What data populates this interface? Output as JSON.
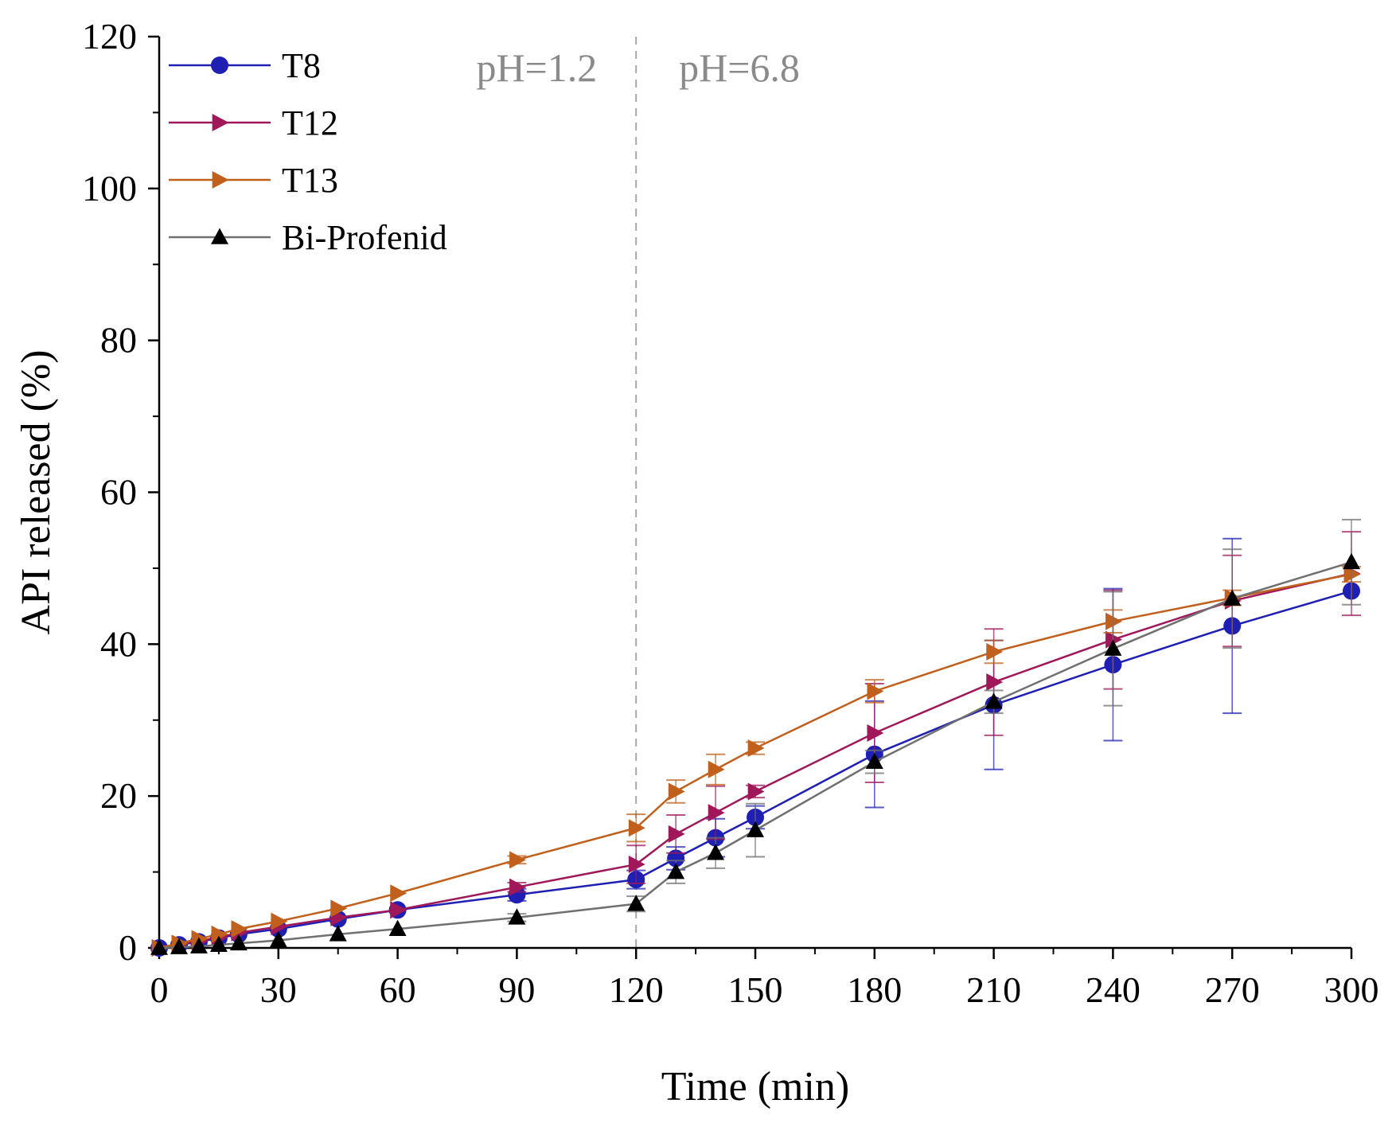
{
  "chart_data": {
    "type": "line",
    "xlabel": "Time (min)",
    "ylabel": "API released (%)",
    "xlim": [
      0,
      300
    ],
    "ylim": [
      0,
      120
    ],
    "xticks": [
      "0",
      "30",
      "60",
      "90",
      "120",
      "150",
      "180",
      "210",
      "240",
      "270",
      "300"
    ],
    "yticks": [
      "0",
      "20",
      "40",
      "60",
      "80",
      "100",
      "120"
    ],
    "grid": false,
    "legend_position": "top-left",
    "annotations": [
      {
        "text": "pH=1.2",
        "x": 95
      },
      {
        "text": "pH=6.8",
        "x": 146
      }
    ],
    "divider_x": 120,
    "series": [
      {
        "name": "T8",
        "color": "#1f1fb4",
        "marker": "circle",
        "x": [
          0,
          5,
          10,
          15,
          20,
          30,
          45,
          60,
          90,
          120,
          130,
          140,
          150,
          180,
          210,
          240,
          270,
          300
        ],
        "y": [
          0,
          0.4,
          0.8,
          1.3,
          1.8,
          2.5,
          3.8,
          5.0,
          7.0,
          9.0,
          11.8,
          14.5,
          17.2,
          25.5,
          32.0,
          37.3,
          42.4,
          47.0
        ],
        "err": [
          0,
          0,
          0,
          0,
          0,
          0,
          0,
          0,
          0.8,
          1.2,
          1.5,
          2.5,
          1.5,
          7.0,
          8.5,
          10.0,
          11.5,
          0
        ]
      },
      {
        "name": "T12",
        "color": "#a0185a",
        "marker": "triangle-right",
        "x": [
          0,
          5,
          10,
          15,
          20,
          30,
          45,
          60,
          90,
          120,
          130,
          140,
          150,
          180,
          210,
          240,
          270,
          300
        ],
        "y": [
          0,
          0.5,
          0.9,
          1.4,
          2.0,
          2.8,
          4.0,
          5.0,
          8.0,
          11.0,
          15.0,
          17.8,
          20.6,
          28.3,
          35.0,
          40.6,
          45.7,
          49.3
        ],
        "err": [
          0,
          0,
          0,
          0,
          0,
          0,
          0,
          0,
          0.6,
          2.5,
          2.5,
          3.5,
          0.8,
          6.5,
          7.0,
          6.5,
          6.0,
          5.5
        ]
      },
      {
        "name": "T13",
        "color": "#c0601c",
        "marker": "triangle-right",
        "x": [
          0,
          5,
          10,
          15,
          20,
          30,
          45,
          60,
          90,
          120,
          130,
          140,
          150,
          180,
          210,
          240,
          270,
          300
        ],
        "y": [
          0,
          0.6,
          1.2,
          1.8,
          2.5,
          3.5,
          5.2,
          7.2,
          11.6,
          15.8,
          20.6,
          23.5,
          26.3,
          33.8,
          39.0,
          43.0,
          46.1,
          49.2
        ],
        "err": [
          0,
          0,
          0,
          0,
          0,
          0,
          0,
          0,
          0.5,
          1.8,
          1.5,
          2.0,
          0.8,
          1.5,
          1.5,
          1.5,
          1.0,
          1.0
        ]
      },
      {
        "name": "Bi-Profenid",
        "color": "#000000",
        "line_color": "#707070",
        "marker": "triangle-up",
        "x": [
          0,
          5,
          10,
          15,
          20,
          30,
          45,
          60,
          90,
          120,
          130,
          140,
          150,
          180,
          210,
          240,
          270,
          300
        ],
        "y": [
          0,
          0.1,
          0.2,
          0.4,
          0.6,
          1.0,
          1.8,
          2.5,
          4.0,
          5.8,
          10.0,
          12.5,
          15.5,
          24.5,
          32.4,
          39.4,
          46.0,
          50.8
        ],
        "err": [
          0,
          0,
          0,
          0,
          0,
          0,
          0,
          0,
          0.5,
          1.0,
          1.5,
          2.0,
          3.5,
          1.5,
          1.5,
          7.5,
          6.5,
          5.6
        ]
      }
    ]
  }
}
